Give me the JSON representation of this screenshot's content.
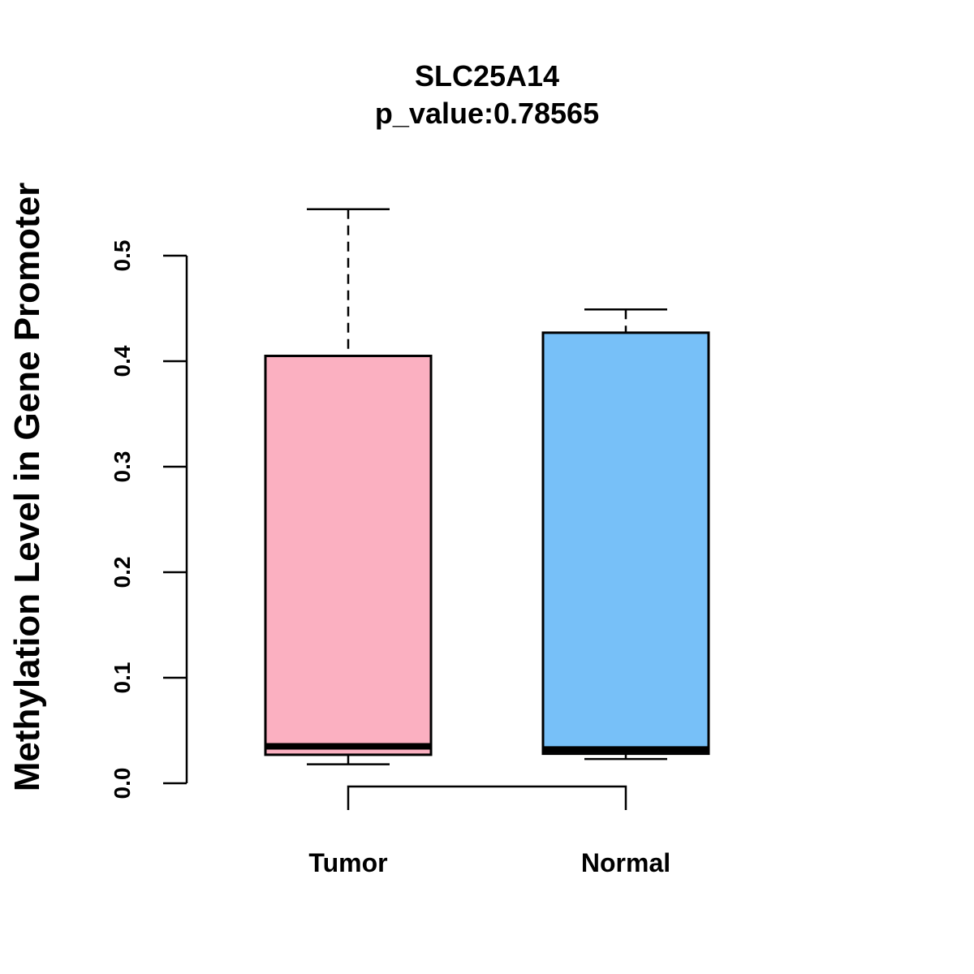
{
  "chart_data": {
    "type": "boxplot",
    "title": "SLC25A14",
    "subtitle": "p_value:0.78565",
    "xlabel": "",
    "ylabel": "Methylation Level in Gene Promoter",
    "ylim": [
      0.0,
      0.5
    ],
    "yticks": [
      "0.0",
      "0.1",
      "0.2",
      "0.3",
      "0.4",
      "0.5"
    ],
    "grid": false,
    "legend": "none",
    "groups": [
      {
        "name": "Tumor",
        "color": "#FBB0C1",
        "whisker_low": 0.018,
        "q1": 0.027,
        "median": 0.035,
        "q3": 0.405,
        "whisker_high": 0.544
      },
      {
        "name": "Normal",
        "color": "#77C0F8",
        "whisker_low": 0.023,
        "q1": 0.028,
        "median": 0.032,
        "q3": 0.427,
        "whisker_high": 0.449
      }
    ],
    "comparison_bracket": {
      "from": "Tumor",
      "to": "Normal"
    }
  }
}
